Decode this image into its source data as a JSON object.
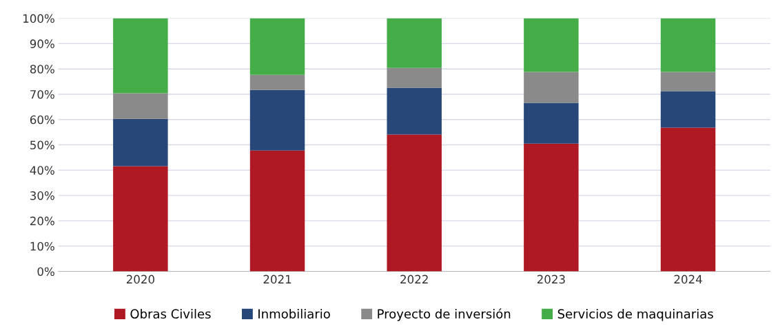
{
  "chart_data": {
    "type": "bar",
    "stacked": true,
    "categories": [
      "2020",
      "2021",
      "2022",
      "2023",
      "2024"
    ],
    "series": [
      {
        "name": "Obras Civiles",
        "color": "#ae1923",
        "values": [
          41.6,
          47.8,
          54.1,
          50.5,
          56.8
        ]
      },
      {
        "name": "Inmobiliario",
        "color": "#264778",
        "values": [
          18.7,
          23.9,
          18.5,
          16.1,
          14.4
        ]
      },
      {
        "name": "Proyecto de inversión",
        "color": "#8a8a8a",
        "values": [
          10.1,
          6.0,
          7.8,
          12.2,
          7.6
        ]
      },
      {
        "name": "Servicios de maquinarias",
        "color": "#45ad48",
        "values": [
          29.6,
          22.3,
          19.6,
          21.2,
          21.2
        ]
      }
    ],
    "ylim": [
      0,
      100
    ],
    "yticks": [
      {
        "value": 0,
        "label": "0%"
      },
      {
        "value": 10,
        "label": "10%"
      },
      {
        "value": 20,
        "label": "20%"
      },
      {
        "value": 30,
        "label": "30%"
      },
      {
        "value": 40,
        "label": "40%"
      },
      {
        "value": 50,
        "label": "50%"
      },
      {
        "value": 60,
        "label": "60%"
      },
      {
        "value": 70,
        "label": "70%"
      },
      {
        "value": 80,
        "label": "80%"
      },
      {
        "value": 90,
        "label": "90%"
      },
      {
        "value": 100,
        "label": "100%"
      }
    ],
    "grid": "y",
    "legend": "bottom"
  }
}
